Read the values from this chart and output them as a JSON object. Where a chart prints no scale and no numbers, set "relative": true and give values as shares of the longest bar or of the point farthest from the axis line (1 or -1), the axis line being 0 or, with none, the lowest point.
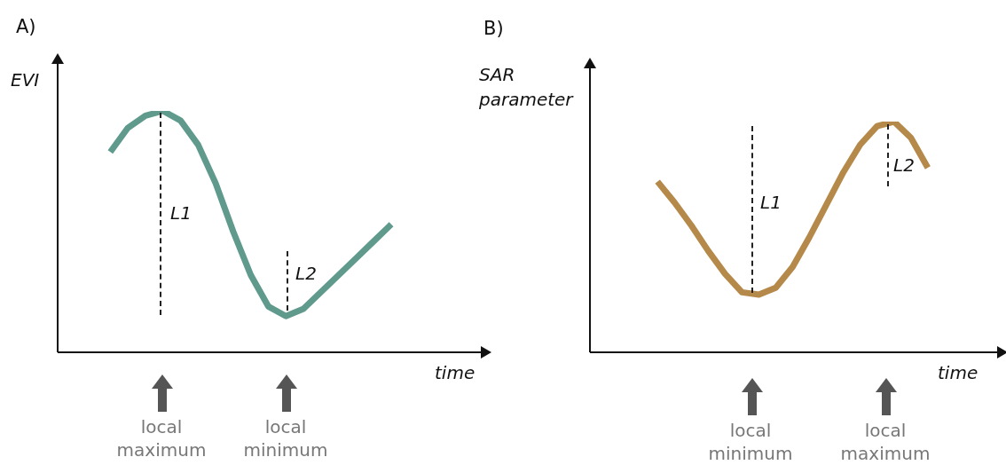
{
  "chart_data": [
    {
      "type": "line",
      "title": "A)",
      "ylabel": "EVI",
      "xlabel": "time",
      "relative": true,
      "tick_labels": false,
      "legend": false,
      "categories": [
        null,
        null,
        null,
        null,
        null,
        null,
        null,
        null,
        null,
        null,
        null,
        null,
        null,
        null,
        null,
        null,
        null,
        null,
        null,
        null,
        null,
        null,
        null,
        null,
        null
      ],
      "series": [
        {
          "color": "#5f9a8c",
          "values": [
            null,
            null,
            null,
            0.83,
            0.93,
            0.98,
            1.0,
            0.96,
            0.86,
            0.7,
            0.5,
            0.32,
            0.19,
            0.15,
            0.18,
            0.25,
            0.32,
            0.39,
            0.46,
            0.53,
            null,
            null,
            null,
            null,
            null
          ]
        }
      ],
      "annotations": [
        "L1",
        "L2",
        "local maximum",
        "local minimum"
      ]
    },
    {
      "type": "line",
      "title": "B)",
      "ylabel": "SAR parameter",
      "xlabel": "time",
      "relative": true,
      "tick_labels": false,
      "legend": false,
      "categories": [
        null,
        null,
        null,
        null,
        null,
        null,
        null,
        null,
        null,
        null,
        null,
        null,
        null,
        null,
        null,
        null,
        null,
        null,
        null,
        null,
        null,
        null,
        null,
        null,
        null
      ],
      "series": [
        {
          "color": "#b5894a",
          "values": [
            null,
            null,
            null,
            null,
            0.74,
            0.65,
            0.55,
            0.44,
            0.34,
            0.26,
            0.25,
            0.28,
            0.37,
            0.5,
            0.64,
            0.78,
            0.9,
            0.98,
            1.0,
            0.93,
            0.8,
            null,
            null,
            null,
            null
          ]
        }
      ],
      "annotations": [
        "L1",
        "L2",
        "local minimum",
        "local maximum"
      ]
    }
  ]
}
